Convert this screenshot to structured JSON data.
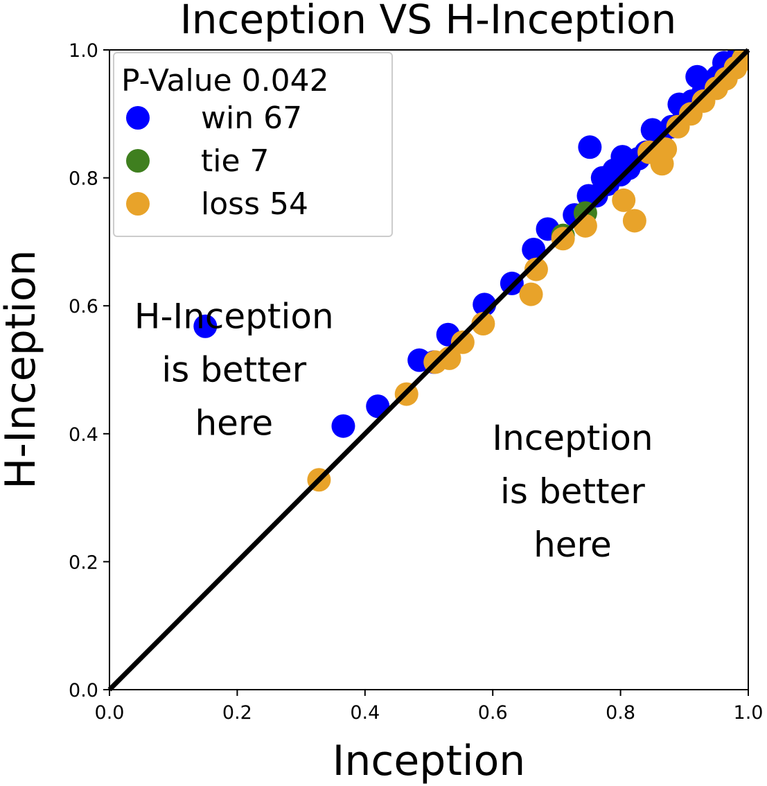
{
  "chart_data": {
    "type": "scatter",
    "title": "Inception VS H-Inception",
    "xlabel": "Inception",
    "ylabel": "H-Inception",
    "xlim": [
      0.0,
      1.0
    ],
    "ylim": [
      0.0,
      1.0
    ],
    "xticks": [
      "0.0",
      "0.2",
      "0.4",
      "0.6",
      "0.8",
      "1.0"
    ],
    "yticks": [
      "0.0",
      "0.2",
      "0.4",
      "0.6",
      "0.8",
      "1.0"
    ],
    "grid": false,
    "legend": {
      "placement": "top-left",
      "title": "P-Value 0.042",
      "entries": [
        "win 67",
        "tie 7",
        "loss 54"
      ]
    },
    "annotations": [
      {
        "lines": [
          "H-Inception",
          "is better",
          "here"
        ],
        "x": 0.195,
        "y": 0.5
      },
      {
        "lines": [
          "Inception",
          "is better",
          "here"
        ],
        "x": 0.725,
        "y": 0.31
      }
    ],
    "reference_line": {
      "from": [
        0,
        0
      ],
      "to": [
        1,
        1
      ],
      "color": "#000000"
    },
    "colors": {
      "win": "#0000ff",
      "tie": "#3f7f1f",
      "loss": "#e8a32a"
    },
    "series": [
      {
        "name": "win 67",
        "color": "#0000ff",
        "points": [
          [
            0.15,
            0.568
          ],
          [
            0.366,
            0.412
          ],
          [
            0.42,
            0.443
          ],
          [
            0.485,
            0.515
          ],
          [
            0.508,
            0.512
          ],
          [
            0.53,
            0.555
          ],
          [
            0.587,
            0.602
          ],
          [
            0.63,
            0.635
          ],
          [
            0.664,
            0.688
          ],
          [
            0.686,
            0.72
          ],
          [
            0.728,
            0.742
          ],
          [
            0.75,
            0.772
          ],
          [
            0.752,
            0.848
          ],
          [
            0.762,
            0.772
          ],
          [
            0.772,
            0.8
          ],
          [
            0.78,
            0.79
          ],
          [
            0.79,
            0.812
          ],
          [
            0.8,
            0.805
          ],
          [
            0.803,
            0.833
          ],
          [
            0.813,
            0.815
          ],
          [
            0.828,
            0.83
          ],
          [
            0.84,
            0.84
          ],
          [
            0.85,
            0.875
          ],
          [
            0.862,
            0.863
          ],
          [
            0.88,
            0.88
          ],
          [
            0.892,
            0.915
          ],
          [
            0.9,
            0.9
          ],
          [
            0.912,
            0.92
          ],
          [
            0.92,
            0.958
          ],
          [
            0.93,
            0.935
          ],
          [
            0.942,
            0.95
          ],
          [
            0.952,
            0.958
          ],
          [
            0.962,
            0.98
          ],
          [
            0.972,
            0.975
          ],
          [
            0.985,
            0.992
          ]
        ]
      },
      {
        "name": "tie 7",
        "color": "#3f7f1f",
        "points": [
          [
            0.71,
            0.71
          ],
          [
            0.745,
            0.745
          ],
          [
            0.995,
            0.995
          ]
        ]
      },
      {
        "name": "loss 54",
        "color": "#e8a32a",
        "points": [
          [
            0.328,
            0.328
          ],
          [
            0.465,
            0.462
          ],
          [
            0.51,
            0.512
          ],
          [
            0.532,
            0.518
          ],
          [
            0.553,
            0.543
          ],
          [
            0.585,
            0.572
          ],
          [
            0.66,
            0.618
          ],
          [
            0.668,
            0.657
          ],
          [
            0.71,
            0.705
          ],
          [
            0.745,
            0.725
          ],
          [
            0.805,
            0.765
          ],
          [
            0.822,
            0.733
          ],
          [
            0.845,
            0.84
          ],
          [
            0.865,
            0.822
          ],
          [
            0.87,
            0.845
          ],
          [
            0.89,
            0.88
          ],
          [
            0.91,
            0.9
          ],
          [
            0.93,
            0.92
          ],
          [
            0.95,
            0.94
          ],
          [
            0.965,
            0.955
          ],
          [
            0.98,
            0.972
          ],
          [
            0.992,
            0.985
          ]
        ]
      }
    ]
  }
}
